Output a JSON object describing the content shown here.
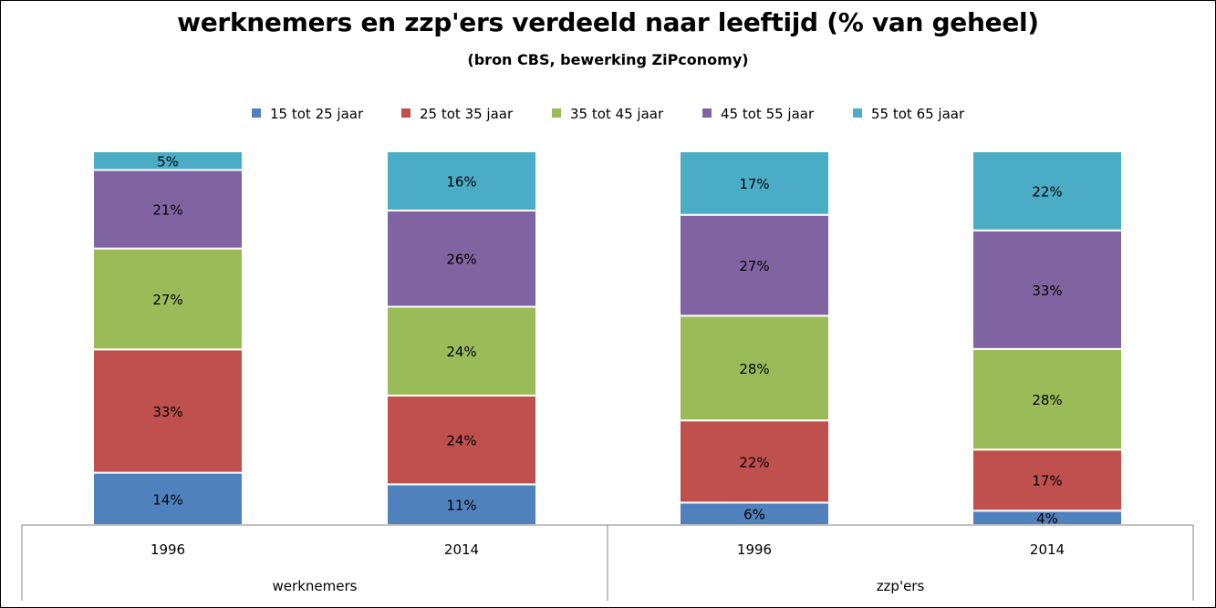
{
  "chart_data": {
    "type": "bar",
    "stacked": true,
    "title": "werknemers en zzp'ers verdeeld naar leeftijd (% van geheel)",
    "subtitle": "(bron CBS, bewerking ZiPconomy)",
    "groups": [
      {
        "label": "werknemers",
        "categories": [
          "1996",
          "2014"
        ]
      },
      {
        "label": "zzp'ers",
        "categories": [
          "1996",
          "2014"
        ]
      }
    ],
    "categories": [
      "1996",
      "2014",
      "1996",
      "2014"
    ],
    "series": [
      {
        "name": "15 tot 25 jaar",
        "color": "#4F81BD",
        "values": [
          14,
          11,
          6,
          4
        ],
        "labels": [
          "14%",
          "11%",
          "6%",
          "4%"
        ]
      },
      {
        "name": "25 tot 35 jaar",
        "color": "#C0504D",
        "values": [
          33,
          24,
          22,
          17
        ],
        "labels": [
          "33%",
          "24%",
          "22%",
          "17%"
        ]
      },
      {
        "name": "35 tot 45 jaar",
        "color": "#9BBB59",
        "values": [
          27,
          24,
          28,
          28
        ],
        "labels": [
          "27%",
          "24%",
          "28%",
          "28%"
        ]
      },
      {
        "name": "45 tot 55 jaar",
        "color": "#8064A2",
        "values": [
          21,
          26,
          27,
          33
        ],
        "labels": [
          "21%",
          "26%",
          "27%",
          "33%"
        ]
      },
      {
        "name": "55 tot 65 jaar",
        "color": "#4BACC6",
        "values": [
          5,
          16,
          17,
          22
        ],
        "labels": [
          "5%",
          "16%",
          "17%",
          "22%"
        ]
      }
    ],
    "legend_position": "top",
    "grid": false
  }
}
